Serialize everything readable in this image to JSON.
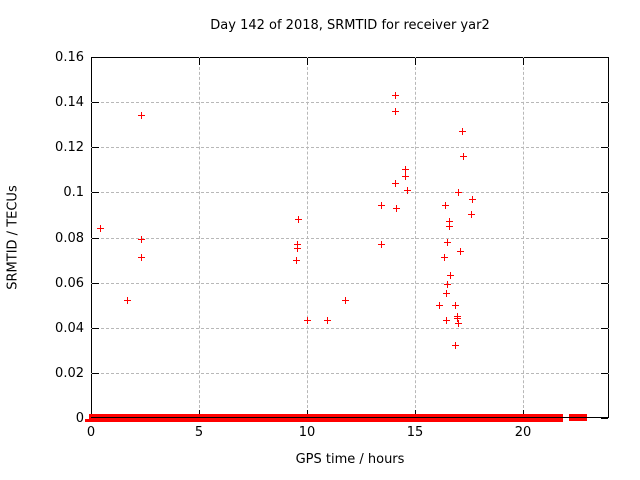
{
  "chart_data": {
    "type": "scatter",
    "title": "Day 142 of 2018, SRMTID for receiver yar2",
    "xlabel": "GPS time / hours",
    "ylabel": "SRMTID / TECUs",
    "xlim": [
      0,
      24
    ],
    "ylim": [
      0,
      0.16
    ],
    "xticks": [
      0,
      5,
      10,
      15,
      20
    ],
    "xtick_labels": [
      "0",
      "5",
      "10",
      "15",
      "20"
    ],
    "yticks": [
      0,
      0.02,
      0.04,
      0.06,
      0.08,
      0.1,
      0.12,
      0.14,
      0.16
    ],
    "ytick_labels": [
      "0",
      "0.02",
      "0.04",
      "0.06",
      "0.08",
      "0.1",
      "0.12",
      "0.14",
      "0.16"
    ],
    "grid": true,
    "legend": "none",
    "marker": "plus",
    "marker_color": "#ff0000",
    "grid_color": "#b8b8b8",
    "series": [
      {
        "name": "SRMTID",
        "points": [
          [
            0.45,
            0.084
          ],
          [
            1.67,
            0.052
          ],
          [
            2.34,
            0.134
          ],
          [
            2.34,
            0.079
          ],
          [
            2.34,
            0.071
          ],
          [
            9.51,
            0.07
          ],
          [
            9.55,
            0.077
          ],
          [
            9.57,
            0.075
          ],
          [
            9.6,
            0.088
          ],
          [
            10.03,
            0.043
          ],
          [
            10.98,
            0.043
          ],
          [
            11.78,
            0.052
          ],
          [
            13.44,
            0.094
          ],
          [
            13.44,
            0.077
          ],
          [
            14.13,
            0.143
          ],
          [
            14.13,
            0.136
          ],
          [
            14.13,
            0.104
          ],
          [
            14.16,
            0.093
          ],
          [
            14.55,
            0.107
          ],
          [
            14.59,
            0.11
          ],
          [
            14.67,
            0.101
          ],
          [
            16.16,
            0.05
          ],
          [
            16.36,
            0.071
          ],
          [
            16.44,
            0.094
          ],
          [
            16.47,
            0.055
          ],
          [
            16.47,
            0.043
          ],
          [
            16.51,
            0.059
          ],
          [
            16.54,
            0.078
          ],
          [
            16.62,
            0.087
          ],
          [
            16.62,
            0.085
          ],
          [
            16.65,
            0.063
          ],
          [
            16.88,
            0.032
          ],
          [
            16.9,
            0.05
          ],
          [
            16.97,
            0.045
          ],
          [
            16.97,
            0.044
          ],
          [
            17.04,
            0.1
          ],
          [
            17.04,
            0.042
          ],
          [
            17.11,
            0.074
          ],
          [
            17.2,
            0.127
          ],
          [
            17.27,
            0.116
          ],
          [
            17.63,
            0.09
          ],
          [
            17.67,
            0.097
          ]
        ]
      }
    ],
    "zero_band_segments_hours": [
      [
        0.05,
        0.79
      ],
      [
        0.97,
        6.12
      ],
      [
        6.21,
        6.63
      ],
      [
        6.72,
        7.27
      ],
      [
        7.39,
        7.52
      ],
      [
        7.63,
        8.53
      ],
      [
        8.6,
        8.83
      ],
      [
        8.94,
        9.03
      ],
      [
        9.1,
        9.6
      ],
      [
        9.76,
        10.23
      ],
      [
        10.3,
        11.0
      ],
      [
        11.04,
        11.23
      ],
      [
        11.31,
        12.59
      ],
      [
        12.74,
        16.36
      ],
      [
        16.56,
        17.1
      ],
      [
        17.2,
        17.48
      ],
      [
        17.61,
        19.57
      ],
      [
        19.68,
        20.03
      ],
      [
        20.15,
        20.42
      ],
      [
        20.49,
        21.73
      ],
      [
        22.27,
        22.84
      ]
    ],
    "zero_underline_segments_hours": [
      [
        -0.14,
        21.73
      ]
    ]
  }
}
